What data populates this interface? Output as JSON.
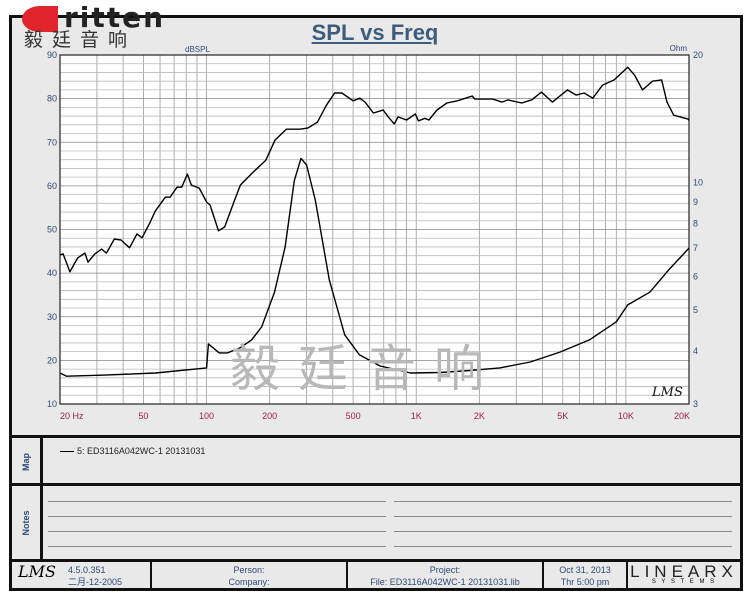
{
  "logo": {
    "brand": "Eritten",
    "brand_rest": "ritten",
    "chinese": "毅廷音响"
  },
  "watermark": "毅廷音响",
  "chart_data": {
    "type": "line",
    "title": "SPL vs Freq",
    "x_scale": "log",
    "xlim": [
      20,
      20000
    ],
    "x_tick_labels": [
      "20 Hz",
      "50",
      "100",
      "200",
      "500",
      "1K",
      "2K",
      "5K",
      "10K",
      "20K"
    ],
    "x_ticks": [
      20,
      50,
      100,
      200,
      500,
      1000,
      2000,
      5000,
      10000,
      20000
    ],
    "ylabel": "dBSPL",
    "ylim": [
      10,
      90
    ],
    "y_ticks": [
      90,
      80,
      70,
      60,
      50,
      40,
      30,
      20,
      10
    ],
    "y2label": "Ohm",
    "y2_scale": "log",
    "y2lim": [
      3,
      20
    ],
    "y2_ticks": [
      20,
      10,
      9,
      8,
      7,
      6,
      5,
      4,
      3
    ],
    "grid": true,
    "series": [
      {
        "axis": "left",
        "color": "#000000",
        "points": [
          [
            20,
            44.2
          ],
          [
            20.7,
            44.4
          ],
          [
            22.3,
            40.3
          ],
          [
            24.3,
            43.5
          ],
          [
            26.3,
            44.6
          ],
          [
            27.2,
            42.5
          ],
          [
            29.3,
            44.4
          ],
          [
            31.6,
            45.5
          ],
          [
            33.3,
            44.6
          ],
          [
            36.3,
            47.8
          ],
          [
            39.1,
            47.6
          ],
          [
            42.9,
            45.8
          ],
          [
            46.6,
            49.0
          ],
          [
            49.2,
            48.1
          ],
          [
            53.6,
            51.5
          ],
          [
            56.9,
            54.2
          ],
          [
            63.6,
            57.4
          ],
          [
            67,
            57.4
          ],
          [
            72.3,
            59.7
          ],
          [
            76.1,
            59.7
          ],
          [
            81,
            62.7
          ],
          [
            84.6,
            60.2
          ],
          [
            92.2,
            59.5
          ],
          [
            100,
            56.3
          ],
          [
            104,
            55.6
          ],
          [
            114,
            49.7
          ],
          [
            122,
            50.6
          ],
          [
            135,
            56.3
          ],
          [
            145,
            60.2
          ],
          [
            165,
            62.9
          ],
          [
            192,
            65.9
          ],
          [
            212,
            70.5
          ],
          [
            240,
            73
          ],
          [
            279,
            73.0
          ],
          [
            305,
            73.3
          ],
          [
            338,
            74.6
          ],
          [
            373,
            78.5
          ],
          [
            408,
            81.3
          ],
          [
            442,
            81.3
          ],
          [
            500,
            79.5
          ],
          [
            538,
            80.1
          ],
          [
            570,
            79.2
          ],
          [
            625,
            76.7
          ],
          [
            695,
            77.4
          ],
          [
            736,
            75.8
          ],
          [
            785,
            74.2
          ],
          [
            820,
            75.8
          ],
          [
            900,
            75.1
          ],
          [
            990,
            76.5
          ],
          [
            1025,
            74.9
          ],
          [
            1100,
            75.5
          ],
          [
            1150,
            75.1
          ],
          [
            1256,
            77.4
          ],
          [
            1400,
            79.0
          ],
          [
            1570,
            79.5
          ],
          [
            1720,
            80.1
          ],
          [
            1850,
            80.6
          ],
          [
            1900,
            79.9
          ],
          [
            2320,
            79.9
          ],
          [
            2560,
            79.2
          ],
          [
            2740,
            79.7
          ],
          [
            3180,
            79.0
          ],
          [
            3550,
            79.7
          ],
          [
            3960,
            81.5
          ],
          [
            4460,
            79.2
          ],
          [
            5260,
            82.0
          ],
          [
            5800,
            80.8
          ],
          [
            6320,
            81.3
          ],
          [
            6950,
            80.1
          ],
          [
            7740,
            83.1
          ],
          [
            8800,
            84.3
          ],
          [
            10200,
            87.2
          ],
          [
            11000,
            85.4
          ],
          [
            12000,
            82.0
          ],
          [
            13400,
            84.0
          ],
          [
            14800,
            84.3
          ],
          [
            15700,
            79.2
          ],
          [
            16900,
            76.2
          ],
          [
            19800,
            75.3
          ],
          [
            20000,
            75.0
          ]
        ]
      },
      {
        "axis": "right",
        "color": "#000000",
        "points": [
          [
            20,
            3.55
          ],
          [
            21.5,
            3.49
          ],
          [
            32.6,
            3.51
          ],
          [
            57,
            3.55
          ],
          [
            100,
            3.65
          ],
          [
            102,
            4.16
          ],
          [
            115,
            3.96
          ],
          [
            126,
            3.96
          ],
          [
            144,
            4.07
          ],
          [
            164,
            4.25
          ],
          [
            183,
            4.56
          ],
          [
            211,
            5.51
          ],
          [
            237,
            7.04
          ],
          [
            262,
            10.1
          ],
          [
            282,
            11.4
          ],
          [
            300,
            11.0
          ],
          [
            330,
            9.09
          ],
          [
            385,
            5.89
          ],
          [
            456,
            4.37
          ],
          [
            536,
            3.92
          ],
          [
            670,
            3.69
          ],
          [
            940,
            3.55
          ],
          [
            1300,
            3.56
          ],
          [
            1800,
            3.6
          ],
          [
            2500,
            3.65
          ],
          [
            3500,
            3.77
          ],
          [
            4860,
            3.98
          ],
          [
            6700,
            4.25
          ],
          [
            9000,
            4.69
          ],
          [
            10200,
            5.14
          ],
          [
            13000,
            5.51
          ],
          [
            16000,
            6.22
          ],
          [
            20000,
            7.0
          ]
        ]
      }
    ]
  },
  "plot_signature": "LMS",
  "map": {
    "label": "Map",
    "legend_entry": "5: ED3116A042WC-1  20131031"
  },
  "notes": {
    "label": "Notes"
  },
  "footer": {
    "lms_logo": "LMS",
    "version": "4.5.0.351",
    "build_date": "二月-12-2005",
    "person": "Person:",
    "company": "Company:",
    "project": "Project:",
    "file": "File: ED3116A042WC-1  20131031.lib",
    "date": "Oct 31, 2013",
    "time": "Thr  5:00 pm",
    "brand": "LINEARX",
    "brand_sub": "S Y S T E M S"
  },
  "colors": {
    "axis_label_left": "#2c4a78",
    "axis_label_x": "#a0204a",
    "title": "#3d5c7c",
    "logo_red": "#e0242c"
  }
}
